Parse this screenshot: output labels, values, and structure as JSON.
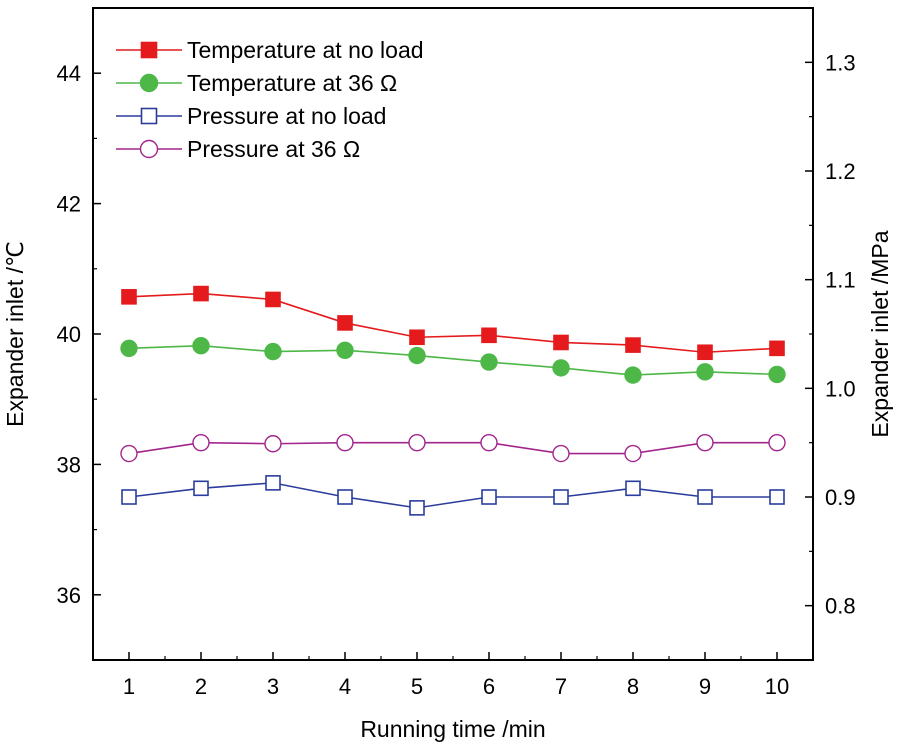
{
  "chart_data": {
    "type": "line",
    "xlabel": "Running time /min",
    "ylabel_left": "Expander inlet /℃",
    "ylabel_right": "Expander inlet /MPa",
    "x": [
      1,
      2,
      3,
      4,
      5,
      6,
      7,
      8,
      9,
      10
    ],
    "xlim": [
      0.5,
      10.5
    ],
    "x_ticks": [
      "1",
      "2",
      "3",
      "4",
      "5",
      "6",
      "7",
      "8",
      "9",
      "10"
    ],
    "ylim_left": [
      35,
      45
    ],
    "y_ticks_left": [
      "36",
      "38",
      "40",
      "42",
      "44"
    ],
    "ylim_right": [
      0.75,
      1.35
    ],
    "y_ticks_right": [
      "0.8",
      "0.9",
      "1.0",
      "1.1",
      "1.2",
      "1.3"
    ],
    "grid": false,
    "legend_position": "top-left",
    "series": [
      {
        "name": "Temperature at no load",
        "axis": "left",
        "color": "#e41a1c",
        "marker": "square",
        "filled": true,
        "values": [
          40.57,
          40.62,
          40.53,
          40.17,
          39.95,
          39.98,
          39.87,
          39.83,
          39.72,
          39.78
        ]
      },
      {
        "name": "Temperature at  36 Ω",
        "axis": "left",
        "color": "#4db848",
        "marker": "circle",
        "filled": true,
        "values": [
          39.78,
          39.82,
          39.73,
          39.75,
          39.67,
          39.57,
          39.48,
          39.37,
          39.42,
          39.38
        ]
      },
      {
        "name": "Pressure at no load",
        "axis": "right",
        "color": "#2b3d9c",
        "marker": "square",
        "filled": false,
        "values": [
          0.9,
          0.908,
          0.913,
          0.9,
          0.89,
          0.9,
          0.9,
          0.908,
          0.9,
          0.9
        ]
      },
      {
        "name": "Pressure at  36 Ω",
        "axis": "right",
        "color": "#a2268c",
        "marker": "circle",
        "filled": false,
        "values": [
          0.94,
          0.95,
          0.949,
          0.95,
          0.95,
          0.95,
          0.94,
          0.94,
          0.95,
          0.95
        ]
      }
    ]
  }
}
